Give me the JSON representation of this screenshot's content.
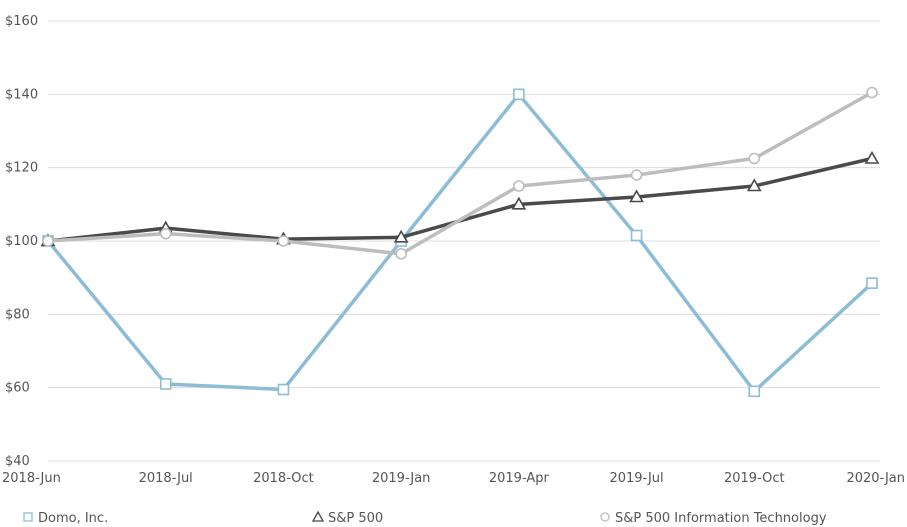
{
  "chart_data": {
    "type": "line",
    "categories": [
      "2018-Jun",
      "2018-Jul",
      "2018-Oct",
      "2019-Jan",
      "2019-Apr",
      "2019-Jul",
      "2019-Oct",
      "2020-Jan"
    ],
    "y_ticks": [
      "$40",
      "$60",
      "$80",
      "$100",
      "$120",
      "$140",
      "$160"
    ],
    "ylim": [
      40,
      160
    ],
    "grid": true,
    "legend_position": "bottom",
    "series": [
      {
        "name": "Domo, Inc.",
        "marker": "square",
        "color": "#8dbcd6",
        "values": [
          100,
          61,
          59.5,
          100,
          140,
          101.5,
          59,
          88.5
        ]
      },
      {
        "name": "S&P 500",
        "marker": "triangle",
        "color": "#4a4a4a",
        "values": [
          100,
          103.5,
          100.5,
          101,
          110,
          112,
          115,
          122.5
        ]
      },
      {
        "name": "S&P 500 Information Technology",
        "marker": "circle",
        "color": "#bdbdbd",
        "values": [
          100,
          102,
          100,
          96.5,
          115,
          118,
          122.5,
          140.5
        ]
      }
    ]
  }
}
